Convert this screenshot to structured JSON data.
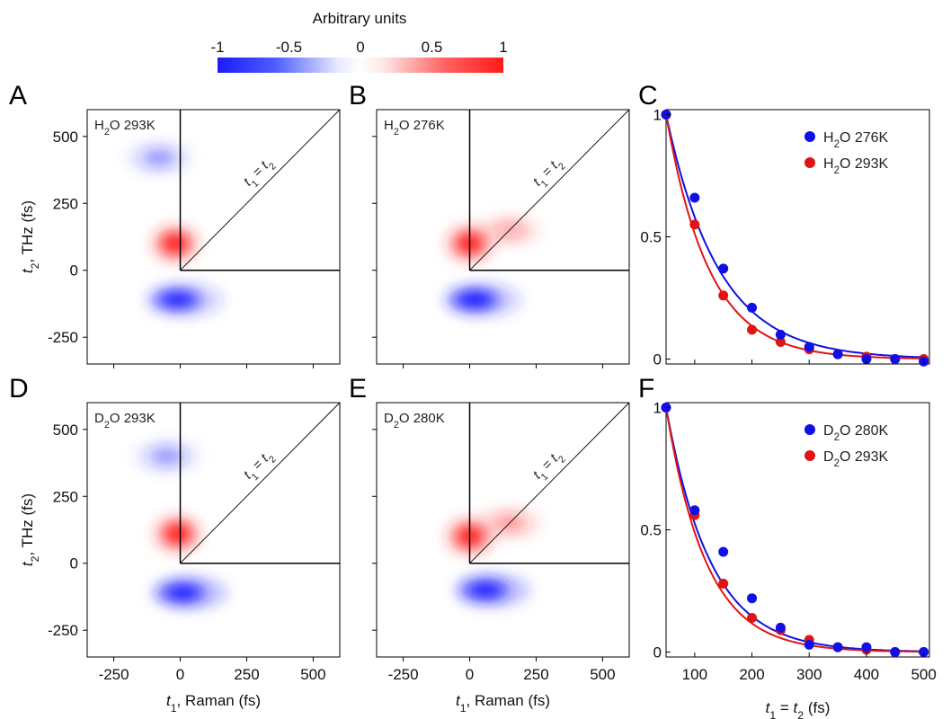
{
  "colorbar": {
    "title": "Arbitrary units",
    "ticks": [
      "-1",
      "-0.5",
      "0",
      "0.5",
      "1"
    ],
    "colors": {
      "negative": "#1a1aff",
      "zero": "#ffffff",
      "positive": "#ff1a1a"
    }
  },
  "axes_text": {
    "contour_ylabel": "t2, THz (fs)",
    "contour_xlabel": "t1, Raman (fs)",
    "decay_xlabel": "t1 = t2 (fs)",
    "diagonal_label": "t1 = t2"
  },
  "chart_data": [
    {
      "panel": "A",
      "type": "heatmap",
      "inset_label": "H2O 293K",
      "xlim": [
        -350,
        600
      ],
      "ylim": [
        -350,
        600
      ],
      "xticks": [
        -250,
        0,
        250,
        500
      ],
      "yticks": [
        -250,
        0,
        250,
        500
      ],
      "features": [
        {
          "sign": "positive",
          "center_t1": -20,
          "center_t2": 100,
          "peak": 1.0
        },
        {
          "sign": "negative",
          "center_t1": -10,
          "center_t2": -110,
          "peak": -0.9
        },
        {
          "sign": "negative",
          "center_t1": -80,
          "center_t2": 420,
          "peak": -0.3
        }
      ]
    },
    {
      "panel": "B",
      "type": "heatmap",
      "inset_label": "H2O 276K",
      "xlim": [
        -350,
        600
      ],
      "ylim": [
        -350,
        600
      ],
      "xticks": [
        -250,
        0,
        250,
        500
      ],
      "yticks": [
        -250,
        0,
        250,
        500
      ],
      "features": [
        {
          "sign": "positive",
          "center_t1": 0,
          "center_t2": 100,
          "peak": 1.0
        },
        {
          "sign": "negative",
          "center_t1": 20,
          "center_t2": -110,
          "peak": -1.0
        },
        {
          "sign": "positive",
          "center_t1": 150,
          "center_t2": 150,
          "peak": 0.25
        }
      ]
    },
    {
      "panel": "C",
      "type": "scatter",
      "xlim": [
        50,
        510
      ],
      "ylim": [
        0,
        1
      ],
      "xticks": [
        100,
        200,
        300,
        400,
        500
      ],
      "yticks": [
        0,
        0.5,
        1
      ],
      "x": [
        50,
        100,
        150,
        200,
        250,
        300,
        350,
        400,
        450,
        500
      ],
      "series": [
        {
          "name": "H2O 276K",
          "color": "#1010e6",
          "values": [
            1.0,
            0.66,
            0.37,
            0.21,
            0.1,
            0.05,
            0.02,
            0.0,
            0.0,
            -0.01
          ],
          "fit_tau": 92
        },
        {
          "name": "H2O 293K",
          "color": "#e11414",
          "values": [
            1.0,
            0.55,
            0.26,
            0.12,
            0.07,
            0.04,
            0.02,
            0.01,
            0.0,
            0.0
          ],
          "fit_tau": 75
        }
      ]
    },
    {
      "panel": "D",
      "type": "heatmap",
      "inset_label": "D2O 293K",
      "xlim": [
        -350,
        600
      ],
      "ylim": [
        -350,
        600
      ],
      "xticks": [
        -250,
        0,
        250,
        500
      ],
      "yticks": [
        -250,
        0,
        250,
        500
      ],
      "features": [
        {
          "sign": "positive",
          "center_t1": -10,
          "center_t2": 110,
          "peak": 1.0
        },
        {
          "sign": "negative",
          "center_t1": 10,
          "center_t2": -110,
          "peak": -0.95
        },
        {
          "sign": "negative",
          "center_t1": -50,
          "center_t2": 400,
          "peak": -0.3
        }
      ]
    },
    {
      "panel": "E",
      "type": "heatmap",
      "inset_label": "D2O 280K",
      "xlim": [
        -350,
        600
      ],
      "ylim": [
        -350,
        600
      ],
      "xticks": [
        -250,
        0,
        250,
        500
      ],
      "yticks": [
        -250,
        0,
        250,
        500
      ],
      "features": [
        {
          "sign": "positive",
          "center_t1": 0,
          "center_t2": 100,
          "peak": 1.0
        },
        {
          "sign": "negative",
          "center_t1": 60,
          "center_t2": -100,
          "peak": -0.95
        },
        {
          "sign": "positive",
          "center_t1": 150,
          "center_t2": 150,
          "peak": 0.3
        }
      ]
    },
    {
      "panel": "F",
      "type": "scatter",
      "xlim": [
        50,
        510
      ],
      "ylim": [
        0,
        1
      ],
      "xticks": [
        100,
        200,
        300,
        400,
        500
      ],
      "yticks": [
        0,
        0.5,
        1
      ],
      "x": [
        50,
        100,
        150,
        200,
        250,
        300,
        350,
        400,
        450,
        500
      ],
      "series": [
        {
          "name": "D2O 280K",
          "color": "#1010e6",
          "values": [
            1.0,
            0.58,
            0.41,
            0.22,
            0.1,
            0.03,
            0.02,
            0.02,
            0.0,
            0.0
          ],
          "fit_tau": 78
        },
        {
          "name": "D2O 293K",
          "color": "#e11414",
          "values": [
            1.0,
            0.56,
            0.28,
            0.14,
            0.09,
            0.05,
            0.02,
            0.01,
            0.0,
            0.0
          ],
          "fit_tau": 70
        }
      ]
    }
  ]
}
